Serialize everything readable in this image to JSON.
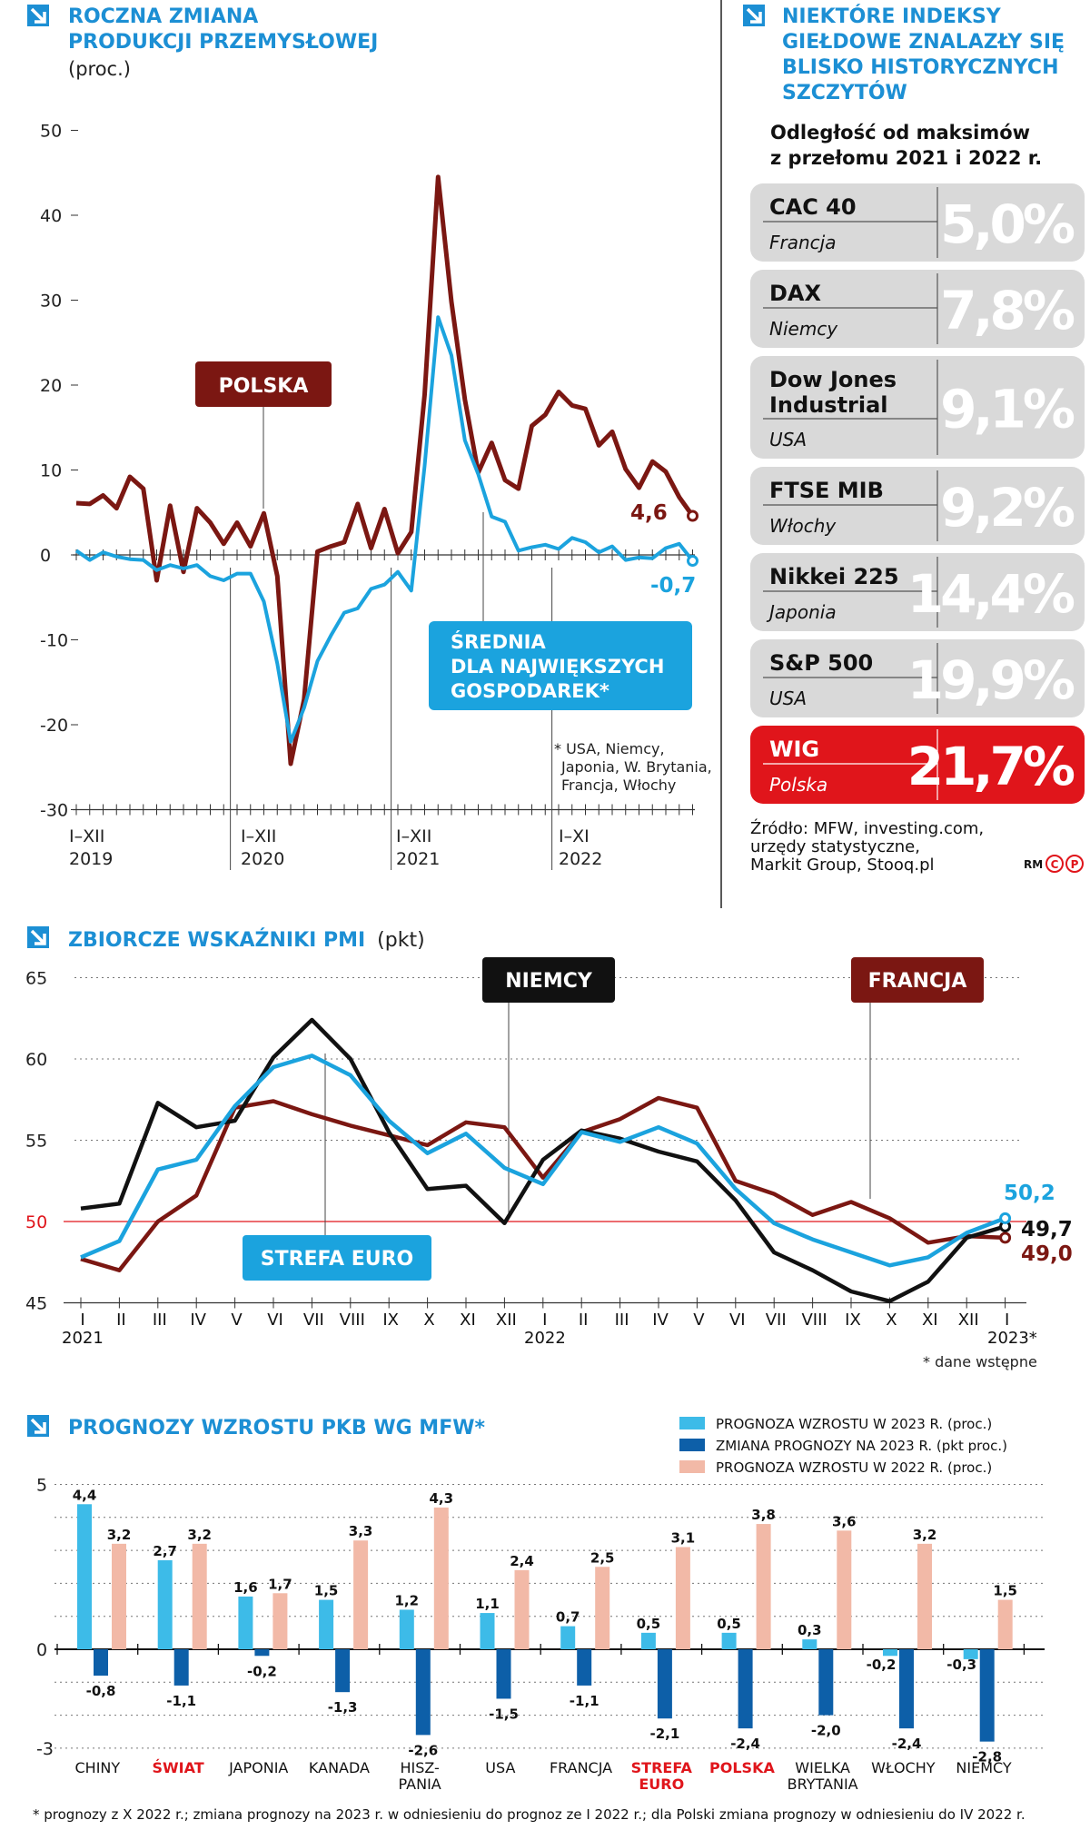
{
  "colors": {
    "poland": "#7b1712",
    "average": "#1ba3de",
    "germany": "#111111",
    "france": "#7b1712",
    "eurozone": "#1ba3de",
    "wig_red": "#e0151b",
    "box_grey": "#d9d9d9",
    "dark_blue": "#0d5fa8",
    "light_blue": "#3dbbe8",
    "peach": "#f2b9a7",
    "accent_blue": "#1c8fd4"
  },
  "industrial": {
    "title_line1": "ROCZNA ZMIANA",
    "title_line2": "PRODUKCJI PRZEMYSŁOWEJ",
    "unit": "(proc.)",
    "footnote_lines": [
      "* USA, Niemcy,",
      "Japonia, W. Brytania,",
      "Francja, Włochy"
    ],
    "label_poland": "POLSKA",
    "label_avg_line1": "ŚREDNIA",
    "label_avg_line2": "DLA NAJWIĘKSZYCH",
    "label_avg_line3": "GOSPODAREK*",
    "end_label_poland": "4,6",
    "end_label_avg": "-0,7",
    "x_period_labels": [
      {
        "top": "I–XII",
        "bottom": "2019"
      },
      {
        "top": "I–XII",
        "bottom": "2020"
      },
      {
        "top": "I–XII",
        "bottom": "2021"
      },
      {
        "top": "I–XI",
        "bottom": "2022"
      }
    ]
  },
  "indices": {
    "title_line1": "NIEKTÓRE INDEKSY",
    "title_line2": "GIEŁDOWE ZNALAZŁY SIĘ",
    "title_line3": "BLISKO HISTORYCZNYCH",
    "title_line4": "SZCZYTÓW",
    "subtitle_line1": "Odległość od maksimów",
    "subtitle_line2": "z przełomu 2021 i 2022 r.",
    "items": [
      {
        "name": "CAC 40",
        "country": "Francja",
        "value": "5,0%",
        "highlight": false
      },
      {
        "name": "DAX",
        "country": "Niemcy",
        "value": "7,8%",
        "highlight": false
      },
      {
        "name": "Dow Jones Industrial",
        "name_line1": "Dow Jones",
        "name_line2": "Industrial",
        "country": "USA",
        "value": "9,1%",
        "highlight": false
      },
      {
        "name": "FTSE MIB",
        "country": "Włochy",
        "value": "9,2%",
        "highlight": false
      },
      {
        "name": "Nikkei 225",
        "country": "Japonia",
        "value": "14,4%",
        "highlight": false
      },
      {
        "name": "S&P 500",
        "country": "USA",
        "value": "19,9%",
        "highlight": false
      },
      {
        "name": "WIG",
        "country": "Polska",
        "value": "21,7%",
        "highlight": true
      }
    ],
    "source_line1": "Źródło: MFW, investing.com,",
    "source_line2": "urzędy statystyczne,",
    "source_line3": "Markit Group, Stooq.pl",
    "credit": "RM"
  },
  "pmi": {
    "title": "ZBIORCZE WSKAŹNIKI PMI",
    "unit": "(pkt)",
    "label_germany": "NIEMCY",
    "label_france": "FRANCJA",
    "label_eurozone": "STREFA EURO",
    "end_eurozone": "50,2",
    "end_germany": "49,7",
    "end_france": "49,0",
    "footnote": "* dane wstępne",
    "year_labels": [
      "2021",
      "2022",
      "2023*"
    ]
  },
  "gdp": {
    "title": "PROGNOZY WZROSTU PKB WG MFW*",
    "legend": [
      "PROGNOZA WZROSTU W 2023 R. (proc.)",
      "ZMIANA PROGNOZY NA 2023 R. (pkt proc.)",
      "PROGNOZA WZROSTU W 2022 R. (proc.)"
    ],
    "footnote": "* prognozy z X 2022 r.; zmiana prognozy na 2023 r. w odniesieniu do prognoz ze I 2022 r.; dla Polski zmiana prognozy w odniesieniu do IV 2022 r."
  },
  "chart_data": [
    {
      "type": "line",
      "title": "ROCZNA ZMIANA PRODUKCJI PRZEMYSŁOWEJ",
      "ylabel": "(proc.)",
      "ylim": [
        -30,
        50
      ],
      "yticks": [
        -30,
        -20,
        -10,
        0,
        10,
        20,
        30,
        40,
        50
      ],
      "x_start": "2019-01",
      "series": [
        {
          "name": "POLSKA",
          "values": [
            6.1,
            6.0,
            7.0,
            5.5,
            9.2,
            7.8,
            -3.0,
            5.8,
            -2.0,
            5.5,
            3.8,
            1.3,
            3.8,
            1.0,
            4.9,
            -2.5,
            -24.6,
            -17.0,
            0.4,
            1.0,
            1.5,
            6.0,
            0.8,
            5.4,
            0.2,
            2.7,
            18.9,
            44.5,
            29.8,
            18.3,
            9.7,
            13.2,
            8.8,
            7.8,
            15.2,
            16.5,
            19.2,
            17.6,
            17.2,
            12.9,
            14.5,
            10.1,
            7.9,
            11.0,
            9.8,
            6.8,
            4.6
          ]
        },
        {
          "name": "ŚREDNIA DLA NAJWIĘKSZYCH GOSPODAREK",
          "values": [
            0.5,
            -0.6,
            0.3,
            -0.2,
            -0.5,
            -0.6,
            -1.8,
            -1.2,
            -1.6,
            -1.2,
            -2.5,
            -3.0,
            -2.2,
            -2.2,
            -5.5,
            -12.8,
            -22.0,
            -18.0,
            -12.5,
            -9.5,
            -6.8,
            -6.3,
            -4.0,
            -3.5,
            -2.0,
            -4.2,
            10.5,
            28.0,
            23.5,
            13.5,
            9.5,
            4.5,
            3.9,
            0.5,
            0.9,
            1.2,
            0.7,
            2.0,
            1.5,
            0.3,
            1.0,
            -0.6,
            -0.3,
            -0.4,
            0.8,
            1.3,
            -0.7
          ]
        }
      ]
    },
    {
      "type": "table",
      "title": "NIEKTÓRE INDEKSY GIEŁDOWE ZNALAZŁY SIĘ BLISKO HISTORYCZNYCH SZCZYTÓW",
      "subtitle": "Odległość od maksimów z przełomu 2021 i 2022 r.",
      "rows": [
        {
          "index": "CAC 40",
          "country": "Francja",
          "value": 5.0
        },
        {
          "index": "DAX",
          "country": "Niemcy",
          "value": 7.8
        },
        {
          "index": "Dow Jones Industrial",
          "country": "USA",
          "value": 9.1
        },
        {
          "index": "FTSE MIB",
          "country": "Włochy",
          "value": 9.2
        },
        {
          "index": "Nikkei 225",
          "country": "Japonia",
          "value": 14.4
        },
        {
          "index": "S&P 500",
          "country": "USA",
          "value": 19.9
        },
        {
          "index": "WIG",
          "country": "Polska",
          "value": 21.7
        }
      ]
    },
    {
      "type": "line",
      "title": "ZBIORCZE WSKAŹNIKI PMI",
      "ylabel": "(pkt)",
      "ylim": [
        45,
        65
      ],
      "yticks": [
        45,
        50,
        55,
        60,
        65
      ],
      "reference_line": 50,
      "categories": [
        "I",
        "II",
        "III",
        "IV",
        "V",
        "VI",
        "VII",
        "VIII",
        "IX",
        "X",
        "XI",
        "XII",
        "I",
        "II",
        "III",
        "IV",
        "V",
        "VI",
        "VII",
        "VIII",
        "IX",
        "X",
        "XI",
        "XII",
        "I"
      ],
      "series": [
        {
          "name": "NIEMCY",
          "values": [
            50.8,
            51.1,
            57.3,
            55.8,
            56.2,
            60.1,
            62.4,
            60.0,
            55.5,
            52.0,
            52.2,
            49.9,
            53.8,
            55.6,
            55.1,
            54.3,
            53.7,
            51.3,
            48.1,
            47.0,
            45.7,
            45.1,
            46.3,
            49.0,
            49.7
          ]
        },
        {
          "name": "FRANCJA",
          "values": [
            47.7,
            47.0,
            50.0,
            51.6,
            57.0,
            57.4,
            56.6,
            55.9,
            55.3,
            54.7,
            56.1,
            55.8,
            52.7,
            55.5,
            56.3,
            57.6,
            57.0,
            52.5,
            51.7,
            50.4,
            51.2,
            50.2,
            48.7,
            49.1,
            49.0
          ]
        },
        {
          "name": "STREFA EURO",
          "values": [
            47.8,
            48.8,
            53.2,
            53.8,
            57.1,
            59.5,
            60.2,
            59.0,
            56.2,
            54.2,
            55.4,
            53.3,
            52.3,
            55.5,
            54.9,
            55.8,
            54.8,
            52.0,
            49.9,
            48.9,
            48.1,
            47.3,
            47.8,
            49.3,
            50.2
          ]
        }
      ]
    },
    {
      "type": "bar",
      "title": "PROGNOZY WZROSTU PKB WG MFW*",
      "ylim": [
        -3,
        5
      ],
      "yticks": [
        -3,
        0,
        5
      ],
      "categories": [
        "CHINY",
        "ŚWIAT",
        "JAPONIA",
        "KANADA",
        "HISZ-PANIA",
        "USA",
        "FRANCJA",
        "STREFA EURO",
        "POLSKA",
        "WIELKA BRYTANIA",
        "WŁOCHY",
        "NIEMCY"
      ],
      "category_lines": [
        [
          "CHINY"
        ],
        [
          "ŚWIAT"
        ],
        [
          "JAPONIA"
        ],
        [
          "KANADA"
        ],
        [
          "HISZ-",
          "PANIA"
        ],
        [
          "USA"
        ],
        [
          "FRANCJA"
        ],
        [
          "STREFA",
          "EURO"
        ],
        [
          "POLSKA"
        ],
        [
          "WIELKA",
          "BRYTANIA"
        ],
        [
          "WŁOCHY"
        ],
        [
          "NIEMCY"
        ]
      ],
      "highlight_categories": [
        "ŚWIAT",
        "STREFA EURO",
        "POLSKA"
      ],
      "series": [
        {
          "name": "PROGNOZA WZROSTU W 2023 R. (proc.)",
          "values": [
            4.4,
            2.7,
            1.6,
            1.5,
            1.2,
            1.1,
            0.7,
            0.5,
            0.5,
            0.3,
            -0.2,
            -0.3
          ],
          "labels": [
            "4,4",
            "2,7",
            "1,6",
            "1,5",
            "1,2",
            "1,1",
            "0,7",
            "0,5",
            "0,5",
            "0,3",
            "-0,2",
            "-0,3"
          ]
        },
        {
          "name": "ZMIANA PROGNOZY NA 2023 R. (pkt proc.)",
          "values": [
            -0.8,
            -1.1,
            -0.2,
            -1.3,
            -2.6,
            -1.5,
            -1.1,
            -2.1,
            -2.4,
            -2.0,
            -2.4,
            -2.8
          ],
          "labels": [
            "-0,8",
            "-1,1",
            "-0,2",
            "-1,3",
            "-2,6",
            "-1,5",
            "-1,1",
            "-2,1",
            "-2,4",
            "-2,0",
            "-2,4",
            "-2,8"
          ]
        },
        {
          "name": "PROGNOZA WZROSTU W 2022 R. (proc.)",
          "values": [
            3.2,
            3.2,
            1.7,
            3.3,
            4.3,
            2.4,
            2.5,
            3.1,
            3.8,
            3.6,
            3.2,
            1.5
          ],
          "labels": [
            "3,2",
            "3,2",
            "1,7",
            "3,3",
            "4,3",
            "2,4",
            "2,5",
            "3,1",
            "3,8",
            "3,6",
            "3,2",
            "1,5"
          ]
        }
      ]
    }
  ]
}
